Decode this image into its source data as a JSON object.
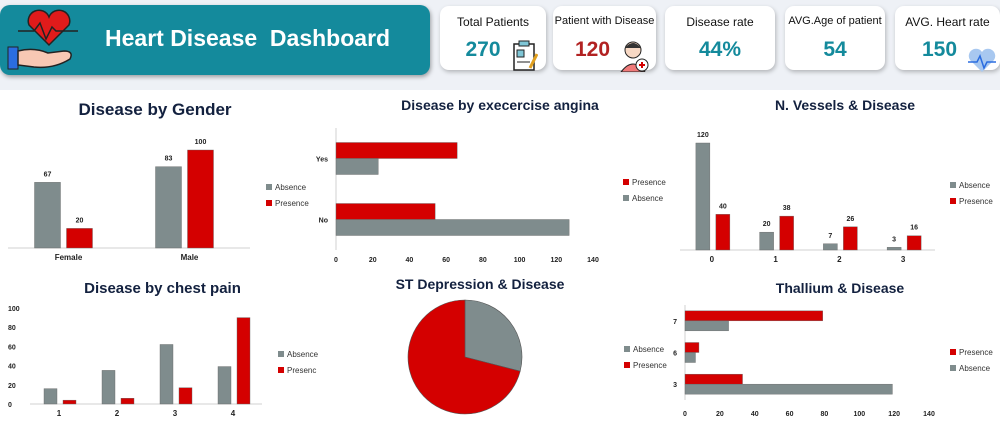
{
  "header": {
    "title": "Heart Disease  Dashboard",
    "icon": "heart-in-hand-icon"
  },
  "kpis": [
    {
      "label": "Total Patients",
      "value": "270",
      "icon": "clipboard-icon",
      "color": "#148a9c"
    },
    {
      "label": "Patient with Disease",
      "value": "120",
      "icon": "sick-patient-icon",
      "color": "#b22222"
    },
    {
      "label": "Disease rate",
      "value": "44%",
      "color": "#148a9c"
    },
    {
      "label": "AVG.Age of patient",
      "value": "54",
      "color": "#148a9c"
    },
    {
      "label": "AVG. Heart rate",
      "value": "150",
      "icon": "heartbeat-icon",
      "color": "#148a9c"
    }
  ],
  "colors": {
    "absence": "#7f8c8d",
    "presence": "#d40000",
    "title": "#13213f",
    "accent": "#148a9c"
  },
  "chart_data": [
    {
      "id": "gender",
      "type": "bar",
      "title": "Disease by Gender",
      "categories": [
        "Female",
        "Male"
      ],
      "series": [
        {
          "name": "Absence",
          "values": [
            67,
            83
          ]
        },
        {
          "name": "Presence",
          "values": [
            20,
            100
          ]
        }
      ],
      "data_labels": true,
      "y_axis_shown": false,
      "ylim": [
        0,
        100
      ],
      "legend": "right"
    },
    {
      "id": "angina",
      "type": "bar",
      "orientation": "horizontal",
      "title": "Disease by execercise angina",
      "categories": [
        "No",
        "Yes"
      ],
      "series": [
        {
          "name": "Presence",
          "values": [
            54,
            66
          ]
        },
        {
          "name": "Absence",
          "values": [
            127,
            23
          ]
        }
      ],
      "xlim": [
        0,
        140
      ],
      "x_ticks": [
        "0",
        "20",
        "40",
        "60",
        "80",
        "100",
        "120",
        "140"
      ],
      "legend": "right"
    },
    {
      "id": "vessels",
      "type": "bar",
      "title": "N. Vessels & Disease",
      "categories": [
        "0",
        "1",
        "2",
        "3"
      ],
      "series": [
        {
          "name": "Absence",
          "values": [
            120,
            20,
            7,
            3
          ]
        },
        {
          "name": "Presence",
          "values": [
            40,
            38,
            26,
            16
          ]
        }
      ],
      "data_labels": true,
      "y_axis_shown": false,
      "ylim": [
        0,
        120
      ],
      "legend": "right"
    },
    {
      "id": "chest",
      "type": "bar",
      "title": "Disease by chest pain",
      "categories": [
        "1",
        "2",
        "3",
        "4"
      ],
      "series": [
        {
          "name": "Absence",
          "values": [
            16,
            35,
            62,
            39
          ]
        },
        {
          "name": "Presence",
          "values": [
            4,
            6,
            17,
            90
          ]
        }
      ],
      "ylim": [
        0,
        100
      ],
      "y_ticks": [
        "0",
        "20",
        "40",
        "60",
        "80",
        "100"
      ],
      "legend": "right",
      "legend_labels": [
        "Absence",
        "Presenc"
      ]
    },
    {
      "id": "st",
      "type": "pie",
      "title": "ST Depression & Disease",
      "series": [
        {
          "name": "Absence",
          "value": 29
        },
        {
          "name": "Presence",
          "value": 71
        }
      ],
      "legend": "right"
    },
    {
      "id": "thallium",
      "type": "bar",
      "orientation": "horizontal",
      "title": "Thallium & Disease",
      "categories": [
        "3",
        "6",
        "7"
      ],
      "series": [
        {
          "name": "Presence",
          "values": [
            33,
            8,
            79
          ]
        },
        {
          "name": "Absence",
          "values": [
            119,
            6,
            25
          ]
        }
      ],
      "xlim": [
        0,
        140
      ],
      "x_ticks": [
        "0",
        "20",
        "40",
        "60",
        "80",
        "100",
        "120",
        "140"
      ],
      "legend": "right"
    }
  ]
}
